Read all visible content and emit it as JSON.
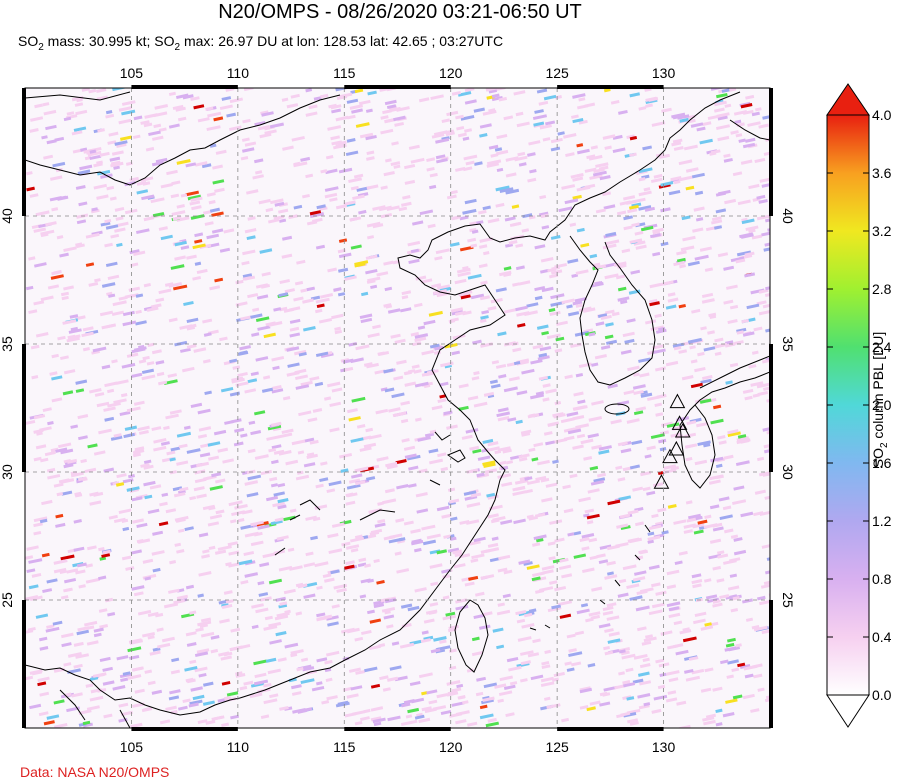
{
  "title": "N20/OMPS - 08/26/2020 03:21-06:50 UT",
  "subtitle": {
    "so2_prefix": "SO",
    "so2_sub": "2",
    "mass_text": " mass: 30.995 kt; ",
    "max_prefix": "SO",
    "max_sub": "2",
    "max_text": " max: 26.97 DU at lon: 128.53 lat: 42.65 ; 03:27UTC"
  },
  "credit": "Data: NASA N20/OMPS",
  "map": {
    "lon_ticks": [
      "105",
      "110",
      "115",
      "120",
      "125",
      "130"
    ],
    "lat_ticks": [
      "40",
      "35",
      "30",
      "25"
    ],
    "lon_values": [
      105,
      110,
      115,
      120,
      125,
      130
    ],
    "lat_values": [
      40,
      35,
      30,
      25
    ],
    "lon_range": [
      100,
      135
    ],
    "lat_range": [
      20,
      45
    ],
    "volcano_markers": [
      {
        "lon": 130.65,
        "lat": 32.75
      },
      {
        "lon": 130.75,
        "lat": 31.9
      },
      {
        "lon": 130.9,
        "lat": 31.6
      },
      {
        "lon": 130.6,
        "lat": 30.9
      },
      {
        "lon": 130.3,
        "lat": 30.6
      },
      {
        "lon": 129.9,
        "lat": 29.6
      }
    ]
  },
  "colorbar": {
    "label_prefix": "SO",
    "label_sub": "2",
    "label_text": " column PBL [DU]",
    "ticks": [
      "4.0",
      "3.6",
      "3.2",
      "2.8",
      "2.4",
      "2.0",
      "1.6",
      "1.2",
      "0.8",
      "0.4",
      "0.0"
    ],
    "colors": [
      "#ffffff",
      "#f6d0f0",
      "#d8b0f0",
      "#9ea8f0",
      "#70c8f0",
      "#50e0c0",
      "#50e050",
      "#c0f030",
      "#f8e020",
      "#f8a020",
      "#f04010",
      "#d00000"
    ]
  }
}
